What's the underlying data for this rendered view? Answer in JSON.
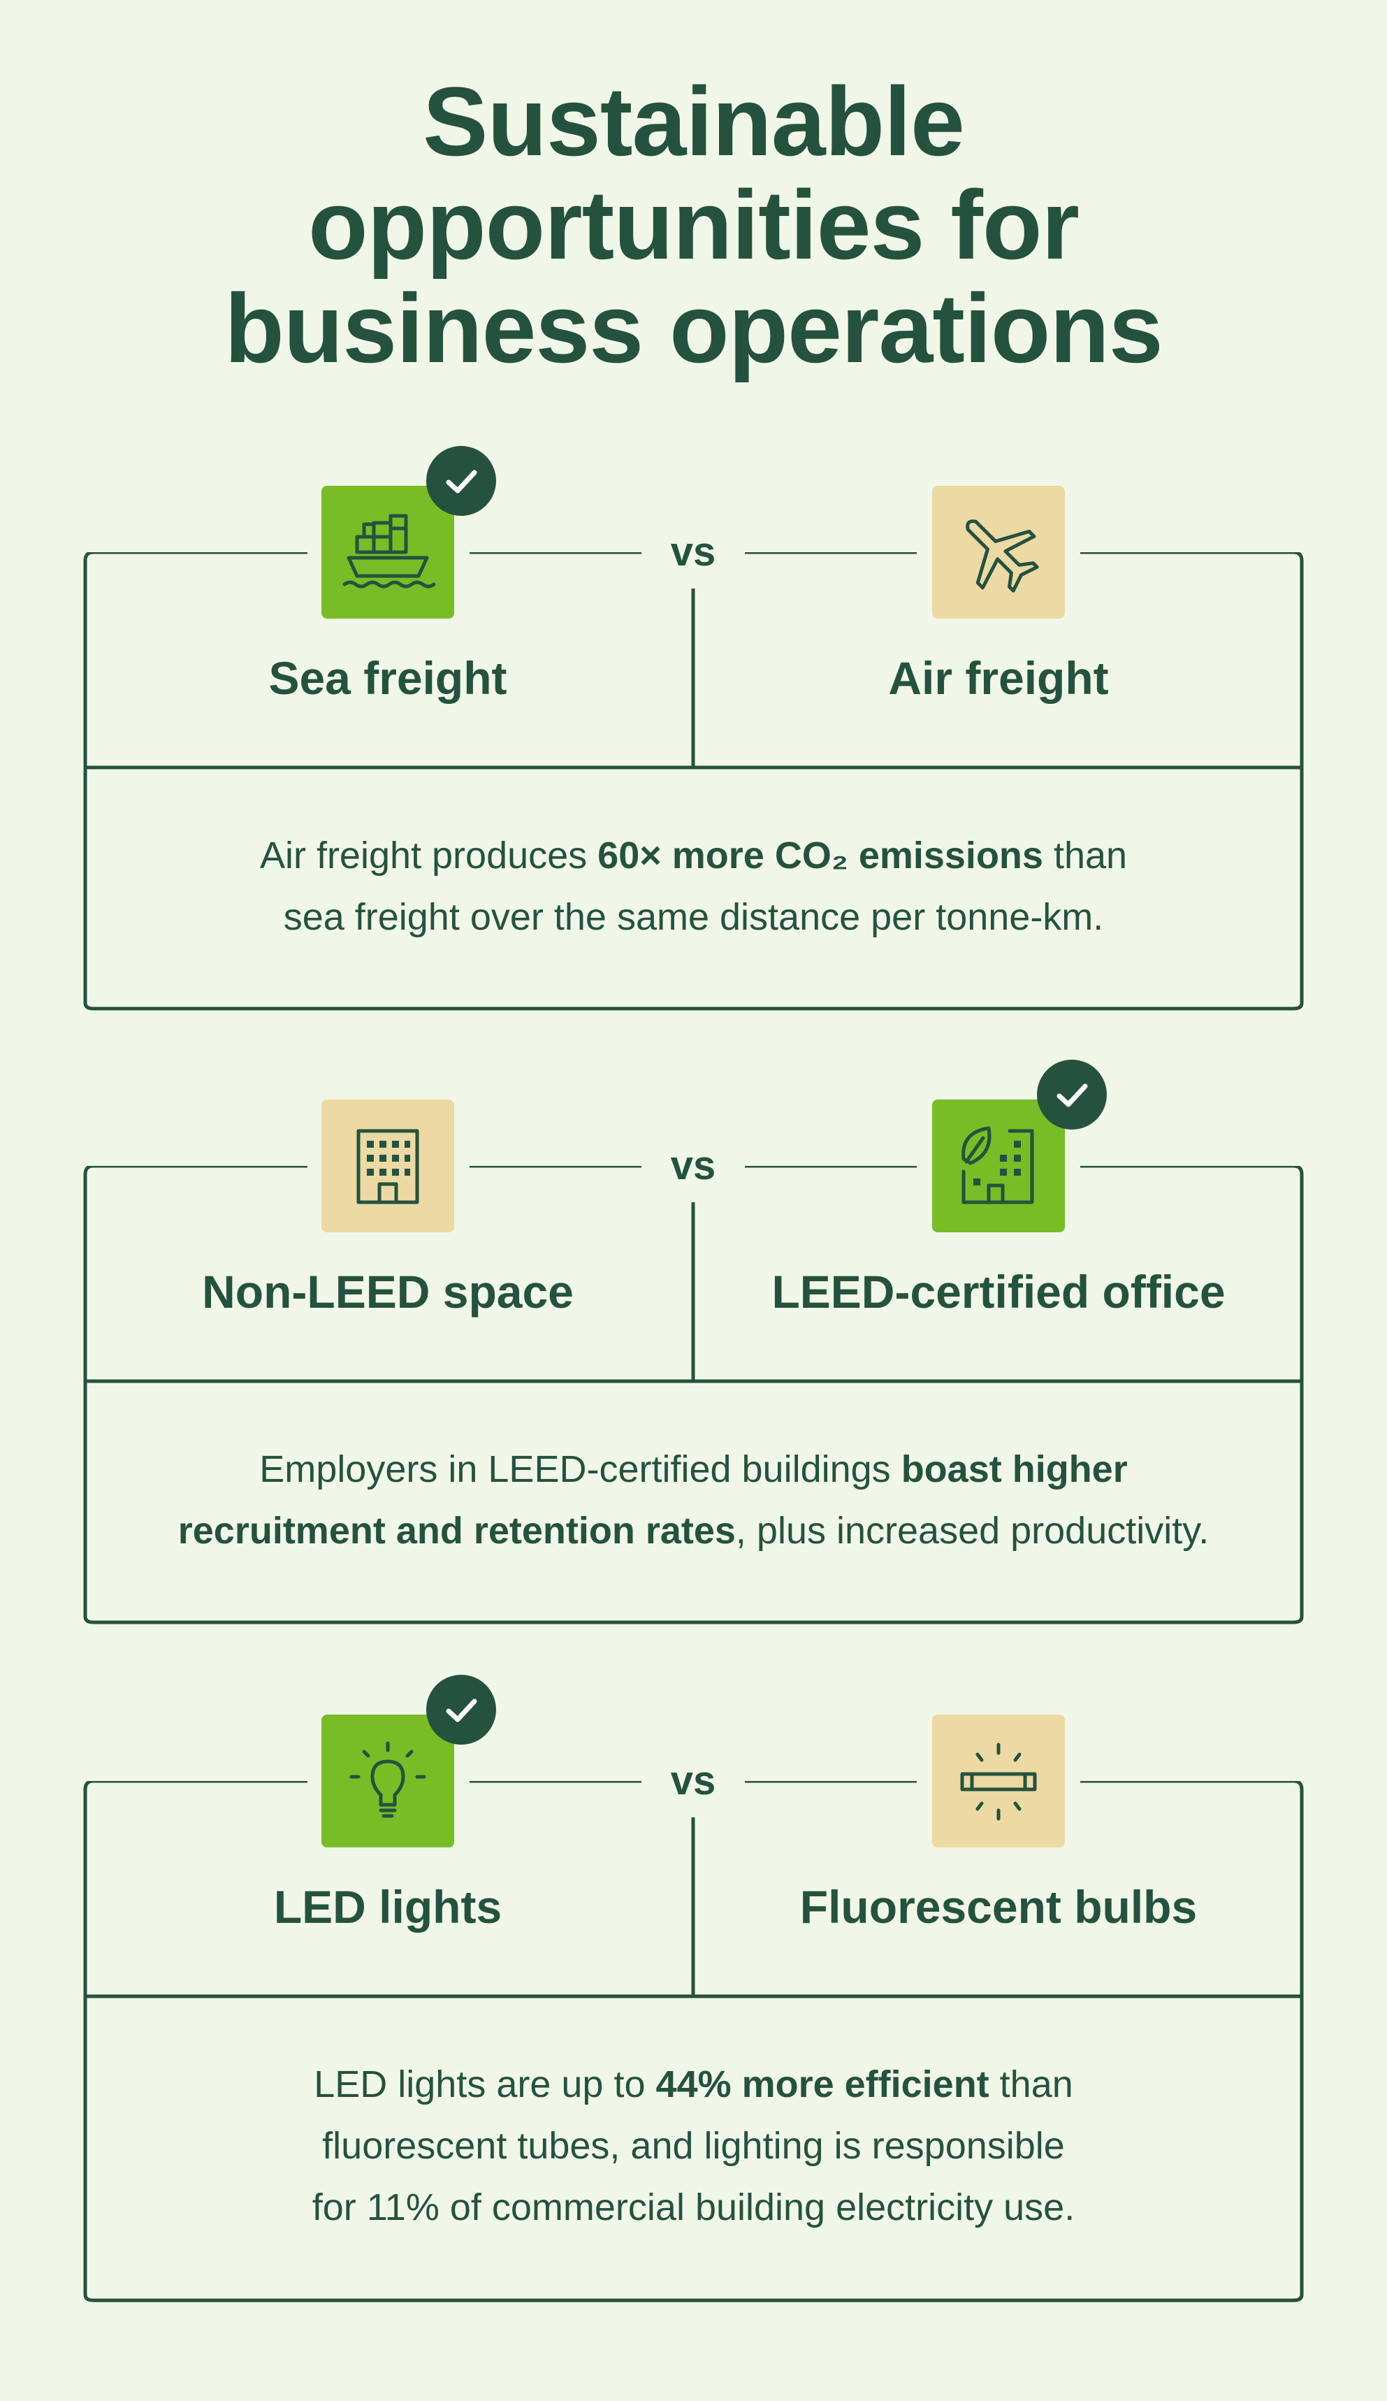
{
  "title": {
    "line1": "Sustainable",
    "line2": "opportunities for",
    "line3": "business operations"
  },
  "colors": {
    "background": "#f1f7e8",
    "dark_green": "#25523f",
    "bright_green": "#78bd26",
    "tan": "#ecd9a3"
  },
  "comparisons": [
    {
      "vs": "vs",
      "left": {
        "label": "Sea freight",
        "icon": "cargo-ship-icon",
        "preferred": true
      },
      "right": {
        "label": "Air freight",
        "icon": "airplane-icon",
        "preferred": false
      },
      "desc": {
        "line1_a": "Air freight produces ",
        "line1_bold": "60× more CO₂ emissions",
        "line1_b": " than",
        "line2": "sea freight over the same distance per tonne-km."
      }
    },
    {
      "vs": "vs",
      "left": {
        "label": "Non-LEED space",
        "icon": "office-building-icon",
        "preferred": false
      },
      "right": {
        "label": "LEED-certified office",
        "icon": "green-building-leaf-icon",
        "preferred": true
      },
      "desc": {
        "line1_a": "Employers in LEED-certified buildings ",
        "line1_bold": "boast higher",
        "line2_bold": "recruitment and retention rates",
        "line2_b": ", plus increased productivity."
      }
    },
    {
      "vs": "vs",
      "left": {
        "label": "LED lights",
        "icon": "light-bulb-icon",
        "preferred": true
      },
      "right": {
        "label": "Fluorescent bulbs",
        "icon": "fluorescent-tube-icon",
        "preferred": false
      },
      "desc": {
        "line1_a": "LED lights are up to ",
        "line1_bold": "44% more efficient",
        "line1_b": " than",
        "line2": "fluorescent tubes, and lighting is responsible",
        "line3": "for 11% of commercial building electricity use."
      }
    }
  ]
}
